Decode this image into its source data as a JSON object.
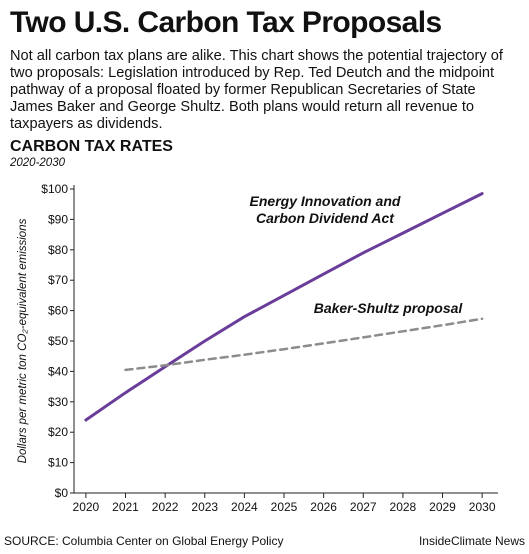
{
  "header": {
    "title": "Two U.S. Carbon Tax Proposals",
    "intro": "Not all carbon tax plans are alike. This chart shows the potential trajectory of two proposals: Legislation introduced by Rep. Ted Deutch and the midpoint pathway of a proposal floated by former Republican Secretaries of State James Baker and George Shultz. Both plans would return all revenue to taxpayers as dividends."
  },
  "section": {
    "title": "CARBON TAX RATES",
    "subtitle": "2020-2030"
  },
  "chart_data": {
    "type": "line",
    "title": "CARBON TAX RATES",
    "subtitle": "2020-2030",
    "xlabel": "",
    "ylabel": "Dollars per metric ton CO₂-equivalent emissions",
    "x": [
      2020,
      2021,
      2022,
      2023,
      2024,
      2025,
      2026,
      2027,
      2028,
      2029,
      2030
    ],
    "x_tick_labels": [
      "2020",
      "2021",
      "2022",
      "2023",
      "2024",
      "2025",
      "2026",
      "2027",
      "2028",
      "2029",
      "2030"
    ],
    "y_tick_labels": [
      "$0",
      "$10",
      "$20",
      "$30",
      "$40",
      "$50",
      "$60",
      "$70",
      "$80",
      "$90",
      "$100"
    ],
    "ylim": [
      0,
      100
    ],
    "xlim": [
      2019.7,
      2030.4
    ],
    "grid": false,
    "legend": "none",
    "series": [
      {
        "name": "Energy Innovation and Carbon Dividend Act",
        "label_lines": [
          "Energy Innovation and",
          "Carbon Dividend Act"
        ],
        "color": "#6a3d9a",
        "style": "solid",
        "x": [
          2020,
          2021,
          2022,
          2023,
          2024,
          2025,
          2026,
          2027,
          2028,
          2029,
          2030
        ],
        "values": [
          24,
          33,
          41.5,
          50,
          58,
          65,
          72,
          79,
          85.5,
          92,
          98.5
        ]
      },
      {
        "name": "Baker-Shultz proposal",
        "label_lines": [
          "Baker-Shultz proposal"
        ],
        "color": "#8c8c8c",
        "style": "dashed",
        "x": [
          2021,
          2022,
          2023,
          2024,
          2025,
          2026,
          2027,
          2028,
          2029,
          2030
        ],
        "values": [
          40.5,
          42,
          43.8,
          45.5,
          47.3,
          49.2,
          51.2,
          53.2,
          55.2,
          57.3
        ]
      }
    ]
  },
  "footer": {
    "source": "SOURCE: Columbia Center on Global Energy Policy",
    "credit": "InsideClimate News"
  }
}
